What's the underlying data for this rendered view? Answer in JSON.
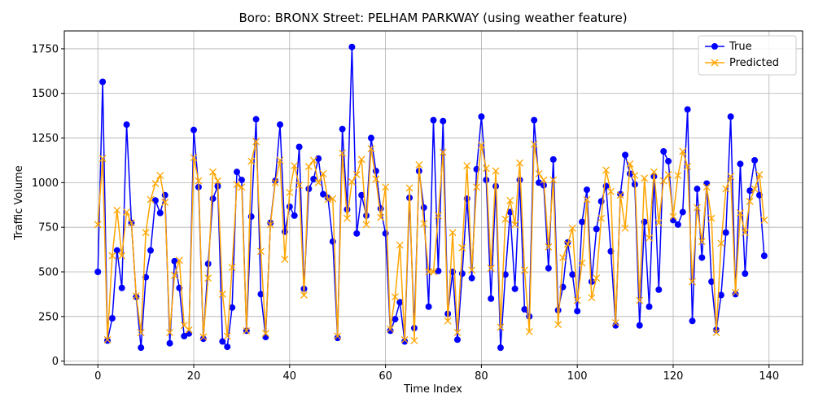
{
  "chart_data": {
    "type": "line",
    "title": "Boro: BRONX Street: PELHAM PARKWAY (using weather feature)",
    "xlabel": "Time Index",
    "ylabel": "Traffic Volume",
    "xlim": [
      -7,
      147
    ],
    "ylim": [
      -20,
      1850
    ],
    "x_ticks": [
      0,
      20,
      40,
      60,
      80,
      100,
      120,
      140
    ],
    "y_ticks": [
      0,
      250,
      500,
      750,
      1000,
      1250,
      1500,
      1750
    ],
    "grid": true,
    "legend_position": "top-right",
    "series": [
      {
        "name": "True",
        "color": "#0000ff",
        "marker": "circle",
        "values": [
          500,
          1565,
          115,
          240,
          620,
          410,
          1325,
          775,
          360,
          75,
          470,
          620,
          900,
          830,
          930,
          100,
          560,
          410,
          140,
          155,
          1295,
          975,
          125,
          545,
          910,
          980,
          110,
          80,
          300,
          1060,
          1015,
          170,
          810,
          1355,
          375,
          135,
          775,
          1010,
          1325,
          725,
          865,
          815,
          1200,
          405,
          965,
          1020,
          1135,
          935,
          915,
          670,
          130,
          1300,
          850,
          1760,
          715,
          930,
          815,
          1250,
          1065,
          855,
          715,
          170,
          235,
          330,
          110,
          915,
          185,
          1065,
          860,
          305,
          1350,
          505,
          1345,
          265,
          500,
          120,
          490,
          910,
          465,
          1075,
          1370,
          1015,
          350,
          980,
          75,
          485,
          835,
          405,
          1015,
          290,
          250,
          1350,
          1000,
          985,
          520,
          1130,
          285,
          415,
          665,
          485,
          280,
          780,
          960,
          445,
          740,
          895,
          980,
          615,
          200,
          935,
          1155,
          1050,
          990,
          200,
          780,
          305,
          1035,
          400,
          1175,
          1120,
          790,
          765,
          835,
          1410,
          225,
          965,
          580,
          995,
          445,
          175,
          370,
          720,
          1370,
          375,
          1105,
          490,
          955,
          1125,
          930,
          590
        ]
      },
      {
        "name": "Predicted",
        "color": "#ffa500",
        "marker": "x",
        "values": [
          765,
          1135,
          120,
          590,
          845,
          590,
          835,
          775,
          365,
          160,
          720,
          905,
          995,
          1040,
          890,
          160,
          480,
          565,
          200,
          175,
          1140,
          1010,
          135,
          465,
          1060,
          1010,
          375,
          140,
          525,
          990,
          975,
          170,
          1120,
          1230,
          615,
          155,
          765,
          1000,
          1125,
          570,
          945,
          1095,
          985,
          370,
          1090,
          1125,
          1000,
          1050,
          905,
          910,
          140,
          1165,
          800,
          1005,
          1045,
          1130,
          765,
          1190,
          1020,
          805,
          975,
          180,
          360,
          650,
          120,
          970,
          115,
          1100,
          770,
          500,
          500,
          815,
          1170,
          225,
          720,
          160,
          635,
          1095,
          510,
          975,
          1210,
          1080,
          520,
          1065,
          190,
          795,
          900,
          765,
          1110,
          510,
          165,
          1215,
          1050,
          1015,
          640,
          1015,
          205,
          580,
          655,
          745,
          340,
          550,
          905,
          355,
          465,
          800,
          1070,
          950,
          215,
          930,
          745,
          1105,
          1040,
          340,
          1025,
          690,
          1060,
          775,
          1010,
          1045,
          810,
          1040,
          1175,
          1090,
          445,
          860,
          670,
          975,
          800,
          160,
          660,
          965,
          1035,
          385,
          830,
          720,
          895,
          965,
          1045,
          790
        ]
      }
    ]
  }
}
